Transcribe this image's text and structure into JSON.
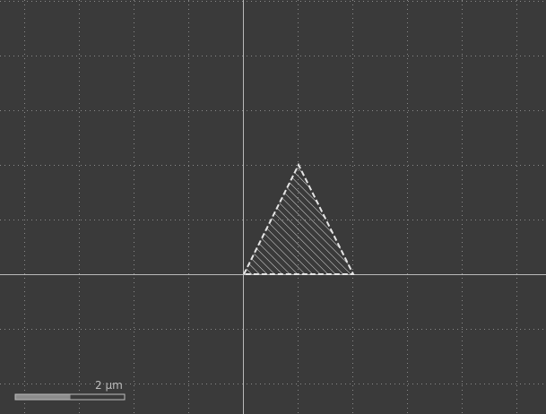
{
  "viewport": {
    "background": "#3a3a3a",
    "grid": {
      "visible": true,
      "style": "dotted",
      "color": "#8a8a8a"
    },
    "axes": {
      "visible": true,
      "color": "#b9b9b9"
    }
  },
  "shape": {
    "type": "triangle",
    "fill": "hatched",
    "outline": "dashed",
    "color": "#e6e6e6",
    "state": "selected"
  },
  "scale_bar": {
    "label": "2  µm",
    "track_color": "#3a3a3a",
    "border_color": "#bdbdbd",
    "fill_color": "#8c8c8c"
  }
}
